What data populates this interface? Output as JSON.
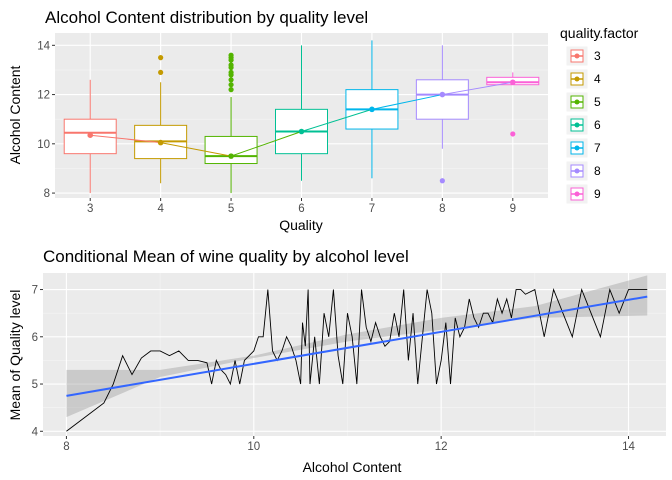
{
  "chart_data": [
    {
      "type": "box",
      "title": "Alcohol Content distribution by quality level",
      "xlabel": "Quality",
      "ylabel": "Alcohol Content",
      "categories": [
        "3",
        "4",
        "5",
        "6",
        "7",
        "8",
        "9"
      ],
      "ylim": [
        7.8,
        14.5
      ],
      "yticks": [
        8,
        10,
        12,
        14
      ],
      "colors": [
        "#F8766D",
        "#C49A00",
        "#53B400",
        "#00C094",
        "#00B6EB",
        "#A58AFF",
        "#FB61D7"
      ],
      "legend": {
        "title": "quality.factor",
        "position": "right",
        "entries": [
          "3",
          "4",
          "5",
          "6",
          "7",
          "8",
          "9"
        ]
      },
      "boxes": [
        {
          "q1": 9.6,
          "median": 10.45,
          "q3": 11.0,
          "whisker_low": 8.0,
          "whisker_high": 12.6,
          "outliers": []
        },
        {
          "q1": 9.4,
          "median": 10.1,
          "q3": 10.75,
          "whisker_low": 8.4,
          "whisker_high": 12.5,
          "outliers": [
            12.9,
            13.5
          ]
        },
        {
          "q1": 9.2,
          "median": 9.5,
          "q3": 10.3,
          "whisker_low": 8.0,
          "whisker_high": 11.9,
          "outliers": [
            12.2,
            12.4,
            12.6,
            12.8,
            12.9,
            13.1,
            13.2,
            13.4,
            13.5,
            13.6
          ]
        },
        {
          "q1": 9.6,
          "median": 10.5,
          "q3": 11.4,
          "whisker_low": 8.5,
          "whisker_high": 14.0,
          "outliers": []
        },
        {
          "q1": 10.6,
          "median": 11.4,
          "q3": 12.2,
          "whisker_low": 8.6,
          "whisker_high": 14.2,
          "outliers": []
        },
        {
          "q1": 11.0,
          "median": 12.0,
          "q3": 12.6,
          "whisker_low": 9.8,
          "whisker_high": 14.0,
          "outliers": [
            8.5
          ]
        },
        {
          "q1": 12.4,
          "median": 12.5,
          "q3": 12.7,
          "whisker_low": 12.4,
          "whisker_high": 12.9,
          "outliers": [
            10.4
          ]
        }
      ],
      "mean_line": [
        10.35,
        10.05,
        9.5,
        10.5,
        11.4,
        12.0,
        12.5
      ]
    },
    {
      "type": "line",
      "title": "Conditional Mean of wine quality by alcohol level",
      "xlabel": "Alcohol Content",
      "ylabel": "Mean of Quality level",
      "xlim": [
        7.75,
        14.4
      ],
      "ylim": [
        3.9,
        7.35
      ],
      "xticks": [
        8,
        10,
        12,
        14
      ],
      "yticks": [
        4,
        5,
        6,
        7
      ],
      "series": [
        {
          "type": "line",
          "color": "#000000",
          "x": [
            8.0,
            8.2,
            8.4,
            8.5,
            8.6,
            8.7,
            8.8,
            8.9,
            9.0,
            9.1,
            9.2,
            9.3,
            9.4,
            9.5,
            9.55,
            9.6,
            9.65,
            9.7,
            9.75,
            9.8,
            9.85,
            9.9,
            9.95,
            10.0,
            10.05,
            10.1,
            10.15,
            10.2,
            10.25,
            10.3,
            10.35,
            10.4,
            10.45,
            10.5,
            10.52,
            10.55,
            10.58,
            10.6,
            10.65,
            10.7,
            10.75,
            10.8,
            10.85,
            10.9,
            10.95,
            11.0,
            11.05,
            11.1,
            11.15,
            11.2,
            11.25,
            11.3,
            11.35,
            11.4,
            11.45,
            11.5,
            11.55,
            11.6,
            11.65,
            11.7,
            11.75,
            11.8,
            11.85,
            11.9,
            11.95,
            12.0,
            12.05,
            12.1,
            12.15,
            12.2,
            12.25,
            12.3,
            12.35,
            12.4,
            12.45,
            12.5,
            12.55,
            12.6,
            12.65,
            12.7,
            12.75,
            12.8,
            12.85,
            12.9,
            13.0,
            13.1,
            13.2,
            13.3,
            13.4,
            13.5,
            13.6,
            13.7,
            13.8,
            13.9,
            14.0,
            14.2
          ],
          "y": [
            4.0,
            4.3,
            4.6,
            5.0,
            5.6,
            5.2,
            5.55,
            5.7,
            5.7,
            5.6,
            5.7,
            5.5,
            5.5,
            5.45,
            5.0,
            5.5,
            5.3,
            5.2,
            5.0,
            5.5,
            5.0,
            5.5,
            5.6,
            5.7,
            6.0,
            6.0,
            7.0,
            5.7,
            5.5,
            5.7,
            6.0,
            5.8,
            5.5,
            5.0,
            6.3,
            5.8,
            7.0,
            5.0,
            6.0,
            5.0,
            6.5,
            6.0,
            7.0,
            5.6,
            5.0,
            6.5,
            6.0,
            5.0,
            7.0,
            6.2,
            5.9,
            6.3,
            6.0,
            5.8,
            5.9,
            6.5,
            6.0,
            7.0,
            5.5,
            6.5,
            5.0,
            6.0,
            7.0,
            6.5,
            5.0,
            5.5,
            6.3,
            5.0,
            6.4,
            6.0,
            6.2,
            6.8,
            6.4,
            6.2,
            6.5,
            6.5,
            6.3,
            6.8,
            6.5,
            6.8,
            6.4,
            7.0,
            7.0,
            6.9,
            7.0,
            6.0,
            7.0,
            6.5,
            6.0,
            7.0,
            6.5,
            6.0,
            7.0,
            6.5,
            7.0,
            7.0
          ]
        },
        {
          "type": "smooth",
          "color": "#3366FF",
          "x": [
            8.0,
            14.2
          ],
          "y": [
            4.75,
            6.85
          ],
          "band": {
            "x": [
              8.0,
              9.0,
              10.0,
              11.0,
              12.0,
              13.0,
              14.2
            ],
            "lower": [
              4.3,
              5.15,
              5.55,
              5.9,
              6.15,
              6.4,
              6.45
            ],
            "upper": [
              5.3,
              5.3,
              5.6,
              6.05,
              6.4,
              6.65,
              7.3
            ]
          }
        }
      ]
    }
  ]
}
